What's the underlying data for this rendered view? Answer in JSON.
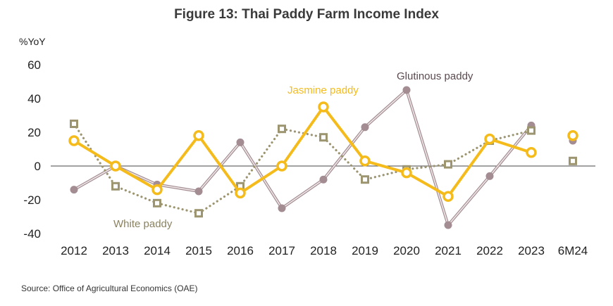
{
  "chart_data": {
    "type": "line",
    "title": "Figure 13: Thai Paddy Farm Income Index",
    "ylabel": "%YoY",
    "ylim": [
      -40,
      60
    ],
    "yticks": [
      60,
      40,
      20,
      0,
      -20,
      -40
    ],
    "categories": [
      "2012",
      "2013",
      "2014",
      "2015",
      "2016",
      "2017",
      "2018",
      "2019",
      "2020",
      "2021",
      "2022",
      "2023",
      "6M24"
    ],
    "series": [
      {
        "name": "Glutinous paddy",
        "color": "#a38d93",
        "lineColor": "#c4b4b8",
        "style": "thin",
        "values": [
          -14,
          0,
          -11,
          -15,
          14,
          -25,
          -8,
          23,
          45,
          -35,
          -6,
          24,
          null
        ],
        "extra": 15
      },
      {
        "name": "White paddy",
        "color": "#9c9570",
        "style": "dotted",
        "values": [
          25,
          -12,
          -22,
          -28,
          -12,
          22,
          17,
          -8,
          -2,
          1,
          15,
          21,
          null
        ],
        "extra": 3
      },
      {
        "name": "Jasmine paddy",
        "color": "#f5bb1b",
        "style": "thick",
        "values": [
          15,
          0,
          -14,
          18,
          -16,
          0,
          35,
          3,
          -4,
          -18,
          16,
          8,
          null
        ],
        "extra": 18
      }
    ],
    "source": "Source: Office of Agricultural Economics (OAE)"
  }
}
